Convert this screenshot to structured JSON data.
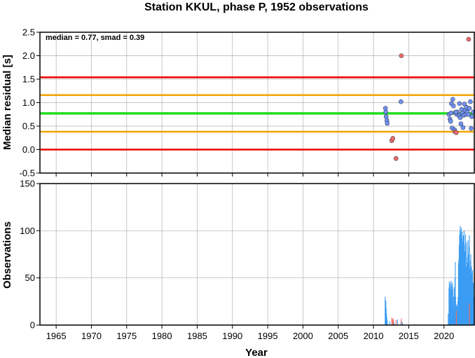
{
  "chart_data": [
    {
      "type": "scatter",
      "title": "Station KKUL, phase P, 1952 observations",
      "ylabel": "Median residual [s]",
      "annotation": "median = 0.77, smad = 0.39",
      "xlim": [
        1962.7,
        2024.3
      ],
      "ylim": [
        -0.5,
        2.5
      ],
      "y_ticks": [
        "-0.5",
        "0.0",
        "0.5",
        "1.0",
        "1.5",
        "2.0",
        "2.5"
      ],
      "y_tick_values": [
        -0.5,
        0,
        0.5,
        1,
        1.5,
        2,
        2.5
      ],
      "reference_lines": [
        {
          "y": 1.54,
          "color": "#ee0000"
        },
        {
          "y": 1.16,
          "color": "#f5a300"
        },
        {
          "y": 0.77,
          "color": "#22dd22"
        },
        {
          "y": 0.38,
          "color": "#f5a300"
        },
        {
          "y": 0.0,
          "color": "#ee0000"
        }
      ],
      "series": [
        {
          "color": "#6f93f2",
          "points": [
            [
              2011.7,
              0.88
            ],
            [
              2011.75,
              0.8
            ],
            [
              2011.8,
              0.7
            ],
            [
              2011.9,
              0.62
            ],
            [
              2011.95,
              0.56
            ],
            [
              2013.9,
              1.02
            ],
            [
              2020.7,
              0.75
            ],
            [
              2020.85,
              0.65
            ],
            [
              2020.95,
              0.6
            ],
            [
              2021.0,
              0.78
            ],
            [
              2021.05,
              0.98
            ],
            [
              2021.15,
              0.46
            ],
            [
              2021.25,
              1.07
            ],
            [
              2021.35,
              0.93
            ],
            [
              2021.5,
              0.42
            ],
            [
              2021.6,
              0.79
            ],
            [
              2021.8,
              0.75
            ],
            [
              2021.9,
              0.8
            ],
            [
              2022.15,
              0.72
            ],
            [
              2022.2,
              0.98
            ],
            [
              2022.4,
              0.55
            ],
            [
              2022.5,
              0.86
            ],
            [
              2022.6,
              0.78
            ],
            [
              2022.7,
              0.47
            ],
            [
              2022.8,
              0.73
            ],
            [
              2022.9,
              0.97
            ],
            [
              2023.0,
              0.84
            ],
            [
              2023.1,
              0.75
            ],
            [
              2023.2,
              0.9
            ],
            [
              2023.3,
              0.8
            ],
            [
              2023.45,
              0.75
            ],
            [
              2023.6,
              0.88
            ],
            [
              2023.75,
              1.02
            ],
            [
              2023.85,
              0.45
            ],
            [
              2023.95,
              0.7
            ],
            [
              2024.15,
              0.8
            ],
            [
              2021.7,
              0.8
            ],
            [
              2022.3,
              0.68
            ]
          ]
        },
        {
          "color": "#f46b60",
          "points": [
            [
              2012.6,
              0.19
            ],
            [
              2012.75,
              0.24
            ],
            [
              2013.2,
              -0.19
            ],
            [
              2013.95,
              2.0
            ],
            [
              2021.55,
              0.38
            ],
            [
              2021.75,
              0.36
            ],
            [
              2023.5,
              2.35
            ]
          ]
        }
      ]
    },
    {
      "type": "bar",
      "xlabel": "Year",
      "ylabel": "Observations",
      "xlim": [
        1962.7,
        2024.3
      ],
      "ylim": [
        0,
        150
      ],
      "x_ticks": [
        "1965",
        "1970",
        "1975",
        "1980",
        "1985",
        "1990",
        "1995",
        "2000",
        "2005",
        "2010",
        "2015",
        "2020"
      ],
      "x_tick_values": [
        1965,
        1970,
        1975,
        1980,
        1985,
        1990,
        1995,
        2000,
        2005,
        2010,
        2015,
        2020
      ],
      "y_ticks": [
        "0",
        "50",
        "100",
        "150"
      ],
      "y_tick_values": [
        0,
        50,
        100,
        150
      ],
      "series": [
        {
          "color": "#3a9cf2",
          "bars": [
            [
              2011.65,
              30
            ],
            [
              2011.7,
              22
            ],
            [
              2011.75,
              26
            ],
            [
              2011.8,
              18
            ],
            [
              2011.85,
              12
            ],
            [
              2011.9,
              8
            ],
            [
              2011.95,
              5
            ],
            [
              2012.3,
              4
            ],
            [
              2012.9,
              3
            ],
            [
              2013.4,
              6
            ],
            [
              2013.9,
              4
            ],
            [
              2014.1,
              3
            ],
            [
              2020.6,
              12
            ],
            [
              2020.7,
              40
            ],
            [
              2020.75,
              46
            ],
            [
              2020.8,
              30
            ],
            [
              2020.85,
              38
            ],
            [
              2020.9,
              44
            ],
            [
              2020.95,
              25
            ],
            [
              2021.0,
              47
            ],
            [
              2021.05,
              35
            ],
            [
              2021.1,
              42
            ],
            [
              2021.15,
              20
            ],
            [
              2021.2,
              45
            ],
            [
              2021.25,
              38
            ],
            [
              2021.3,
              18
            ],
            [
              2021.35,
              30
            ],
            [
              2021.4,
              25
            ],
            [
              2021.45,
              40
            ],
            [
              2021.5,
              15
            ],
            [
              2021.55,
              50
            ],
            [
              2021.6,
              67
            ],
            [
              2021.65,
              30
            ],
            [
              2021.7,
              18
            ],
            [
              2021.75,
              22
            ],
            [
              2021.8,
              12
            ],
            [
              2021.85,
              20
            ],
            [
              2021.9,
              14
            ],
            [
              2021.95,
              25
            ],
            [
              2022.0,
              30
            ],
            [
              2022.05,
              65
            ],
            [
              2022.1,
              70
            ],
            [
              2022.15,
              85
            ],
            [
              2022.2,
              95
            ],
            [
              2022.25,
              100
            ],
            [
              2022.3,
              105
            ],
            [
              2022.35,
              98
            ],
            [
              2022.4,
              80
            ],
            [
              2022.45,
              103
            ],
            [
              2022.5,
              92
            ],
            [
              2022.55,
              75
            ],
            [
              2022.6,
              99
            ],
            [
              2022.65,
              88
            ],
            [
              2022.7,
              60
            ],
            [
              2022.75,
              95
            ],
            [
              2022.8,
              70
            ],
            [
              2022.85,
              100
            ],
            [
              2022.9,
              85
            ],
            [
              2022.95,
              50
            ],
            [
              2023.0,
              78
            ],
            [
              2023.05,
              96
            ],
            [
              2023.1,
              62
            ],
            [
              2023.15,
              55
            ],
            [
              2023.2,
              88
            ],
            [
              2023.25,
              72
            ],
            [
              2023.3,
              58
            ],
            [
              2023.35,
              66
            ],
            [
              2023.4,
              90
            ],
            [
              2023.45,
              45
            ],
            [
              2023.5,
              75
            ],
            [
              2023.55,
              83
            ],
            [
              2023.6,
              95
            ],
            [
              2023.65,
              60
            ],
            [
              2023.7,
              50
            ],
            [
              2023.75,
              68
            ],
            [
              2023.8,
              75
            ],
            [
              2023.85,
              40
            ],
            [
              2023.9,
              62
            ],
            [
              2023.95,
              55
            ],
            [
              2024.0,
              48
            ],
            [
              2024.05,
              58
            ],
            [
              2024.1,
              38
            ],
            [
              2024.15,
              45
            ],
            [
              2024.2,
              30
            ]
          ]
        },
        {
          "color": "#f46b60",
          "bars": [
            [
              2012.6,
              8
            ],
            [
              2012.7,
              6
            ],
            [
              2012.8,
              7
            ],
            [
              2013.2,
              5
            ],
            [
              2013.95,
              7
            ],
            [
              2021.75,
              15
            ],
            [
              2023.6,
              23
            ]
          ]
        }
      ]
    }
  ]
}
